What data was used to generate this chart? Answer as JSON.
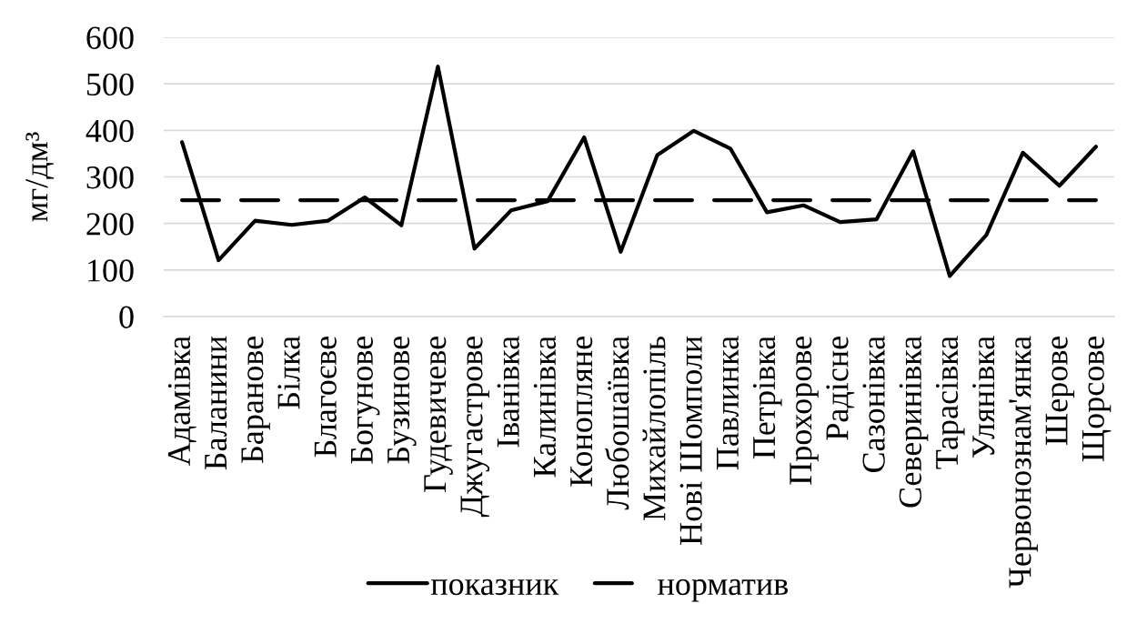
{
  "chart_data": {
    "type": "line",
    "ylabel": "мг/дм³",
    "categories": [
      "Адамівка",
      "Баланини",
      "Баранове",
      "Білка",
      "Благоєве",
      "Богунове",
      "Бузинове",
      "Гудевичеве",
      "Джугастрове",
      "Іванівка",
      "Калинівка",
      "Конопляне",
      "Любошаївка",
      "Михайлопіль",
      "Нові Шомполи",
      "Павлинка",
      "Петрівка",
      "Прохорове",
      "Радісне",
      "Сазонівка",
      "Северинівка",
      "Тарасівка",
      "Улянівка",
      "Червонознам'янка",
      "Шерове",
      "Щорсове"
    ],
    "series": [
      {
        "name": "показник",
        "color": "#000000",
        "line_style": "solid",
        "values": [
          375,
          121,
          206,
          197,
          206,
          256,
          196,
          537,
          146,
          228,
          248,
          385,
          139,
          347,
          399,
          361,
          224,
          239,
          203,
          209,
          355,
          87,
          175,
          352,
          281,
          365
        ]
      },
      {
        "name": "норматив",
        "color": "#000000",
        "line_style": "dashed",
        "values": [
          250,
          250,
          250,
          250,
          250,
          250,
          250,
          250,
          250,
          250,
          250,
          250,
          250,
          250,
          250,
          250,
          250,
          250,
          250,
          250,
          250,
          250,
          250,
          250,
          250,
          250
        ]
      }
    ],
    "ylim": [
      0,
      600
    ],
    "yticks": [
      0,
      100,
      200,
      300,
      400,
      500,
      600
    ],
    "grid": "y",
    "legend": "bottom"
  }
}
